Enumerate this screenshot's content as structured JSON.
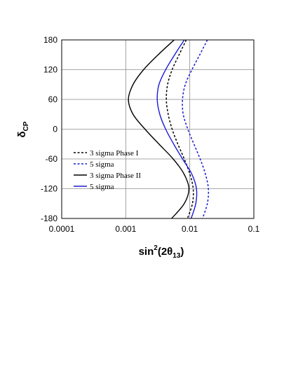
{
  "chart_data": {
    "type": "line",
    "xlabel": "sin",
    "xlabel_sup": "2",
    "xlabel_paren_open": "(2θ",
    "xlabel_sub": "13",
    "xlabel_paren_close": ")",
    "ylabel": "δ",
    "ylabel_sub": "CP",
    "xscale": "log",
    "xlim": [
      0.0001,
      0.1
    ],
    "ylim": [
      -180,
      180
    ],
    "grid": true,
    "legend_position": "lower-left",
    "x_ticks": [
      {
        "value": 0.0001,
        "label": "0.0001"
      },
      {
        "value": 0.001,
        "label": "0.001"
      },
      {
        "value": 0.01,
        "label": "0.01"
      },
      {
        "value": 0.1,
        "label": "0.1"
      }
    ],
    "y_ticks": [
      {
        "value": 180,
        "label": "180"
      },
      {
        "value": 120,
        "label": "120"
      },
      {
        "value": 60,
        "label": "60"
      },
      {
        "value": 0,
        "label": "0"
      },
      {
        "value": -60,
        "label": "-60"
      },
      {
        "value": -120,
        "label": "-120"
      },
      {
        "value": -180,
        "label": "-180"
      }
    ],
    "series": [
      {
        "name": "3 sigma Phase I",
        "color": "#000000",
        "dash": "dashed",
        "points": [
          [
            0.0088,
            180
          ],
          [
            0.0068,
            150
          ],
          [
            0.0053,
            120
          ],
          [
            0.0045,
            90
          ],
          [
            0.0043,
            60
          ],
          [
            0.0046,
            30
          ],
          [
            0.0053,
            0
          ],
          [
            0.0065,
            -30
          ],
          [
            0.0082,
            -60
          ],
          [
            0.01,
            -90
          ],
          [
            0.0113,
            -120
          ],
          [
            0.011,
            -150
          ],
          [
            0.0092,
            -180
          ]
        ]
      },
      {
        "name": "5 sigma",
        "color": "#1a1adb",
        "dash": "dashed",
        "points": [
          [
            0.0188,
            180
          ],
          [
            0.0143,
            150
          ],
          [
            0.0108,
            120
          ],
          [
            0.0085,
            90
          ],
          [
            0.0077,
            60
          ],
          [
            0.0079,
            30
          ],
          [
            0.0093,
            0
          ],
          [
            0.0116,
            -30
          ],
          [
            0.0145,
            -60
          ],
          [
            0.0175,
            -90
          ],
          [
            0.0195,
            -120
          ],
          [
            0.0188,
            -150
          ],
          [
            0.0158,
            -180
          ]
        ]
      },
      {
        "name": "3 sigma Phase II",
        "color": "#000000",
        "dash": "solid",
        "points": [
          [
            0.0057,
            180
          ],
          [
            0.0032,
            150
          ],
          [
            0.0019,
            120
          ],
          [
            0.0013,
            90
          ],
          [
            0.0011,
            60
          ],
          [
            0.0013,
            30
          ],
          [
            0.002,
            0
          ],
          [
            0.0033,
            -30
          ],
          [
            0.0055,
            -60
          ],
          [
            0.0081,
            -90
          ],
          [
            0.0097,
            -120
          ],
          [
            0.0082,
            -150
          ],
          [
            0.0052,
            -180
          ]
        ]
      },
      {
        "name": "5 sigma",
        "color": "#1a1adb",
        "dash": "solid",
        "points": [
          [
            0.0082,
            180
          ],
          [
            0.0058,
            150
          ],
          [
            0.0042,
            120
          ],
          [
            0.0033,
            90
          ],
          [
            0.0031,
            60
          ],
          [
            0.0034,
            30
          ],
          [
            0.0042,
            0
          ],
          [
            0.0056,
            -30
          ],
          [
            0.0077,
            -60
          ],
          [
            0.0107,
            -90
          ],
          [
            0.0127,
            -120
          ],
          [
            0.0124,
            -150
          ],
          [
            0.0105,
            -180
          ]
        ]
      }
    ]
  }
}
